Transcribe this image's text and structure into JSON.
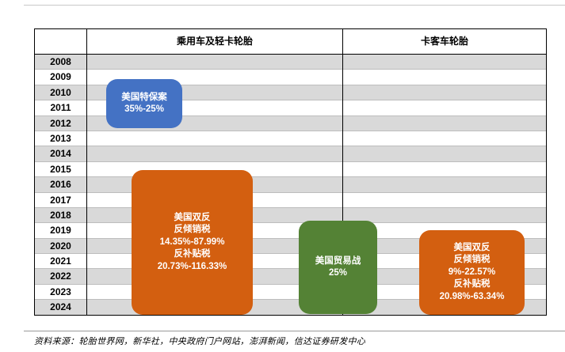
{
  "table": {
    "header_car": "乘用车及轻卡轮胎",
    "header_truck": "卡客车轮胎",
    "years": [
      "2008",
      "2009",
      "2010",
      "2011",
      "2012",
      "2013",
      "2014",
      "2015",
      "2016",
      "2017",
      "2018",
      "2019",
      "2020",
      "2021",
      "2022",
      "2023",
      "2024"
    ]
  },
  "boxes": {
    "blue": {
      "title": "美国特保案",
      "rate": "35%-25%",
      "color": "#4472c4"
    },
    "orange_car": {
      "title": "美国双反",
      "line1": "反倾销税",
      "line2": "14.35%-87.99%",
      "line3": "反补贴税",
      "line4": "20.73%-116.33%",
      "color": "#d35f10"
    },
    "green": {
      "title": "美国贸易战",
      "rate": "25%",
      "color": "#548235"
    },
    "orange_truck": {
      "title": "美国双反",
      "line1": "反倾销税",
      "line2": "9%-22.57%",
      "line3": "反补贴税",
      "line4": "20.98%-63.34%",
      "color": "#d35f10"
    }
  },
  "source": "资料来源：轮胎世界网，新华社，中央政府门户网站，澎湃新闻，信达证券研发中心"
}
